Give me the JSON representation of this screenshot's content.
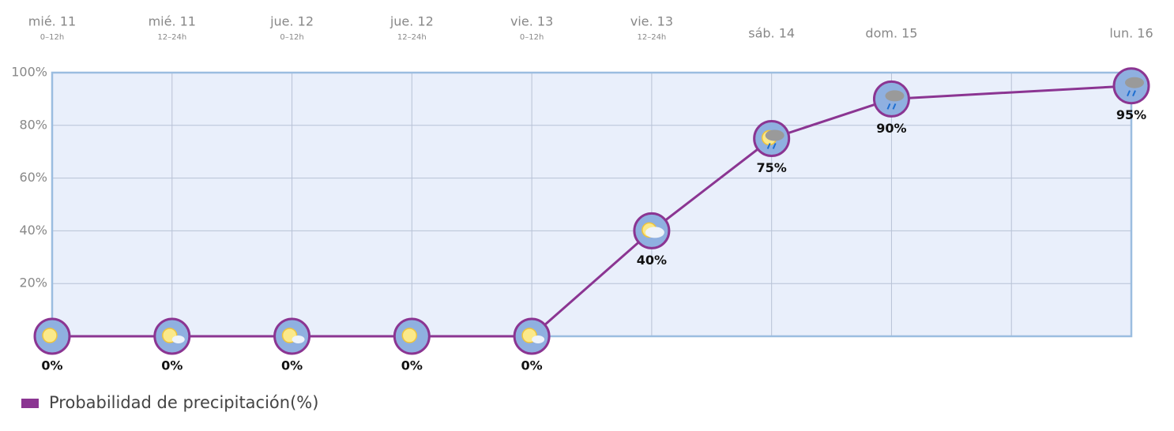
{
  "chart_data": {
    "type": "line",
    "categories": [
      "mié. 11",
      "mié. 11",
      "jue. 12",
      "jue. 12",
      "vie. 13",
      "vie. 13",
      "sáb. 14",
      "dom. 15",
      "lun. 16"
    ],
    "category_subtitles": [
      "0–12h",
      "12–24h",
      "0–12h",
      "12–24h",
      "0–12h",
      "12–24h",
      null,
      null,
      null
    ],
    "series": [
      {
        "name": "Probabilidad de precipitación(%)",
        "color": "#8b3592",
        "values": [
          0,
          0,
          0,
          0,
          0,
          40,
          75,
          90,
          95
        ],
        "value_labels": [
          "0%",
          "0%",
          "0%",
          "0%",
          "0%",
          "40%",
          "75%",
          "90%",
          "95%"
        ]
      }
    ],
    "ylim": [
      0,
      100
    ],
    "yticks": [
      0,
      {
        "value": 20,
        "label": "20%"
      },
      {
        "value": 40,
        "label": "40%"
      },
      {
        "value": 60,
        "label": "60%"
      },
      {
        "value": 80,
        "label": "80%"
      },
      {
        "value": 100,
        "label": "100%"
      }
    ],
    "grid": true,
    "legend": "bottom-left"
  }
}
